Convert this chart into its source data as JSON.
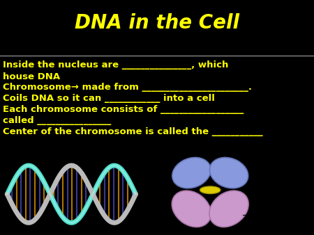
{
  "title": "DNA in the Cell",
  "title_color": "#FFFF00",
  "title_fontsize": 20,
  "background_color": "#000000",
  "text_color": "#FFFF00",
  "text_fontsize": 9.5,
  "lines": [
    "Inside the nucleus are _______________, which",
    "house DNA",
    "Chromosome→ made from _______________________.  ",
    "Coils DNA so it can ____________ into a cell",
    "Each chromosome consists of __________________",
    "called ________________",
    "Center of the chromosome is called the ___________"
  ],
  "divider_color": "#888888",
  "dna_bg": "#004444",
  "chrom_bg": "#FFFFFF"
}
